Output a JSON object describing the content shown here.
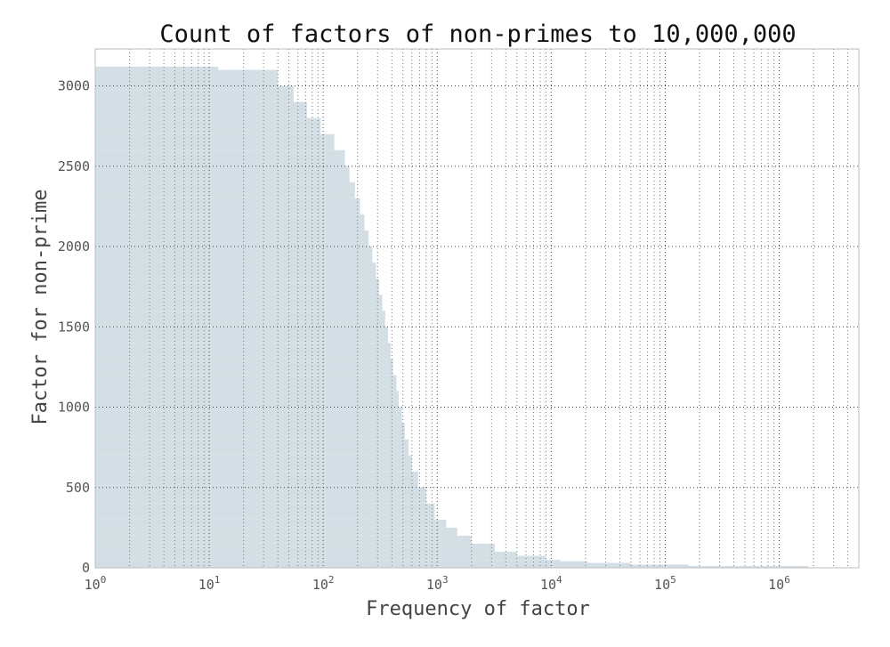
{
  "chart_data": {
    "type": "bar",
    "orientation": "horizontal",
    "title": "Count of factors of non-primes to 10,000,000",
    "xlabel": "Frequency of factor",
    "ylabel": "Factor for non-prime",
    "x_scale": "log",
    "xlim": [
      1,
      5000000
    ],
    "ylim": [
      0,
      3230
    ],
    "x_ticks": [
      {
        "base": "10",
        "exp": "0"
      },
      {
        "base": "10",
        "exp": "1"
      },
      {
        "base": "10",
        "exp": "2"
      },
      {
        "base": "10",
        "exp": "3"
      },
      {
        "base": "10",
        "exp": "4"
      },
      {
        "base": "10",
        "exp": "5"
      },
      {
        "base": "10",
        "exp": "6"
      }
    ],
    "y_ticks": [
      "0",
      "500",
      "1000",
      "1500",
      "2000",
      "2500",
      "3000"
    ],
    "grid": true,
    "bar_color": "#cdd9e1",
    "series": [
      {
        "factor": [
          2,
          10,
          20,
          30,
          40,
          50,
          75,
          100,
          150,
          200,
          250,
          300,
          400,
          500,
          600,
          700,
          800,
          900,
          1000,
          1100,
          1200,
          1300,
          1400,
          1500,
          1600,
          1700,
          1800,
          1900,
          2000,
          2100,
          2200,
          2300,
          2400,
          2500,
          2600,
          2700,
          2800,
          2900,
          3000,
          3100
        ],
        "frequency": [
          1800000,
          160000,
          50000,
          21000,
          12000,
          9000,
          5000,
          3200,
          2000,
          1500,
          1200,
          950,
          800,
          680,
          600,
          560,
          520,
          490,
          460,
          440,
          410,
          390,
          370,
          350,
          330,
          310,
          290,
          270,
          250,
          230,
          210,
          190,
          170,
          155,
          125,
          95,
          72,
          55,
          40,
          12
        ]
      }
    ]
  }
}
